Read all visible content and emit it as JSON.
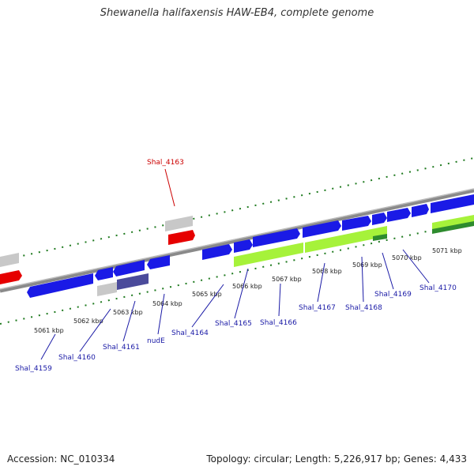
{
  "title": "Shewanella halifaxensis HAW-EB4, complete genome",
  "footer": {
    "accession": "Accession: NC_010334",
    "summary": "Topology: circular; Length: 5,226,917 bp; Genes: 4,433"
  },
  "colors": {
    "forward_gene": "#1a1ae6",
    "reverse_gene": "#1a1ae6",
    "highlight_gene": "#e60000",
    "grey_gene": "#c8c8c8",
    "rna_gene": "#a6f23a",
    "dark_green": "#2e8b2e",
    "purple_gene": "#4b4b9b",
    "ruler": "#7a7a7a",
    "tick": "#1f7a1f",
    "blue_label": "#1a1aa6",
    "red_label": "#cc0000"
  },
  "scale_labels": [
    "5061 kbp",
    "5062 kbp",
    "5063 kbp",
    "5064 kbp",
    "5065 kbp",
    "5066 kbp",
    "5067 kbp",
    "5068 kbp",
    "5069 kbp",
    "5070 kbp",
    "5071 kbp"
  ],
  "gene_labels": [
    "Shal_4159",
    "Shal_4160",
    "Shal_4161",
    "nudE",
    "Shal_4164",
    "Shal_4165",
    "Shal_4166",
    "Shal_4167",
    "Shal_4168",
    "Shal_4169",
    "Shal_4170"
  ],
  "highlight_label": "Shal_4163"
}
